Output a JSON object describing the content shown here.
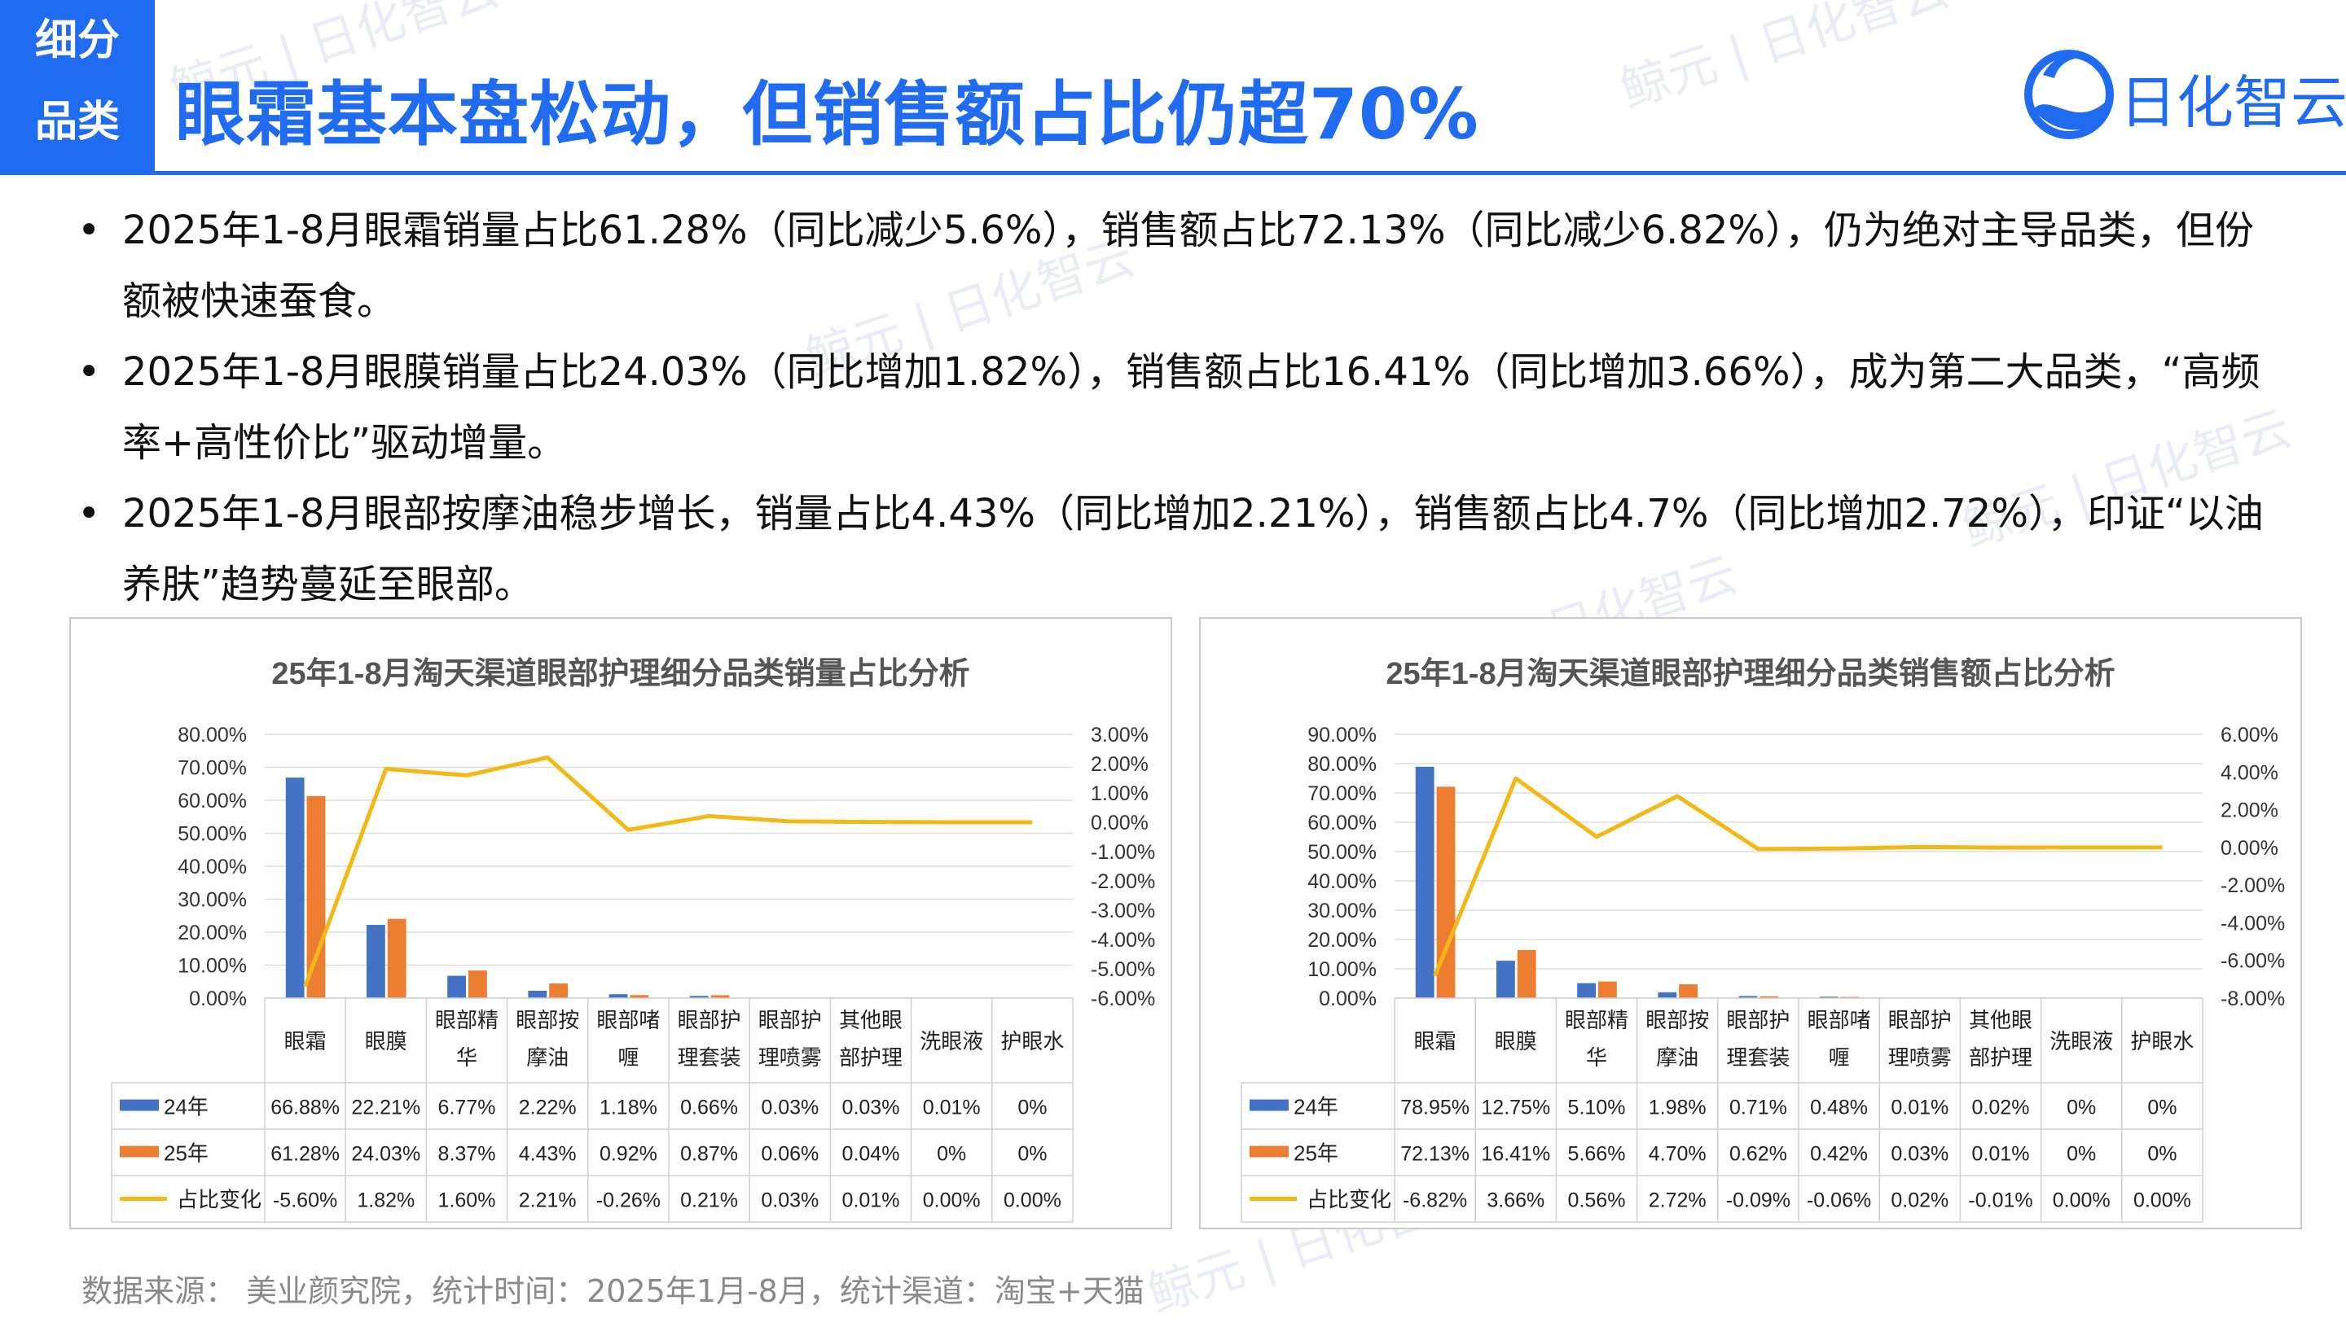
{
  "header": {
    "tag_line1": "细分",
    "tag_line2": "品类",
    "title": "眼霜基本盘松动，但销售额占比仍超70%",
    "logo_text": "日化智云",
    "brand_color": "#1f6bf2"
  },
  "bullets": [
    "2025年1-8月眼霜销量占比61.28%（同比减少5.6%），销售额占比72.13%（同比减少6.82%），仍为绝对主导品类，但份额被快速蚕食。",
    "2025年1-8月眼膜销量占比24.03%（同比增加1.82%），销售额占比16.41%（同比增加3.66%），成为第二大品类，“高频率+高性价比”驱动增量。",
    "2025年1-8月眼部按摩油稳步增长，销量占比4.43%（同比增加2.21%），销售额占比4.7%（同比增加2.72%），印证“以油养肤”趋势蔓延至眼部。"
  ],
  "source": "数据来源： 美业颜究院，统计时间：2025年1月-8月，统计渠道：淘宝+天猫",
  "watermark": "鲸元 | 日化智云",
  "chart_data": [
    {
      "type": "bar",
      "title": "25年1-8月淘天渠道眼部护理细分品类销量占比分析",
      "categories": [
        "眼霜",
        "眼膜",
        "眼部精华",
        "眼部按摩油",
        "眼部啫喱",
        "眼部护理套装",
        "眼部护理喷雾",
        "其他眼部护理",
        "洗眼液",
        "护眼水"
      ],
      "category_lines": [
        [
          "眼霜"
        ],
        [
          "眼膜"
        ],
        [
          "眼部精",
          "华"
        ],
        [
          "眼部按",
          "摩油"
        ],
        [
          "眼部啫",
          "喱"
        ],
        [
          "眼部护",
          "理套装"
        ],
        [
          "眼部护",
          "理喷雾"
        ],
        [
          "其他眼",
          "部护理"
        ],
        [
          "洗眼液"
        ],
        [
          "护眼水"
        ]
      ],
      "y_ticks": [
        "80.00%",
        "70.00%",
        "60.00%",
        "50.00%",
        "40.00%",
        "30.00%",
        "20.00%",
        "10.00%",
        "0.00%"
      ],
      "y2_ticks": [
        "3.00%",
        "2.00%",
        "1.00%",
        "0.00%",
        "-1.00%",
        "-2.00%",
        "-3.00%",
        "-4.00%",
        "-5.00%",
        "-6.00%"
      ],
      "ylim": [
        0,
        80
      ],
      "y2lim": [
        -6,
        3
      ],
      "series": [
        {
          "name": "24年",
          "kind": "bar",
          "axis": "left",
          "color": "#4472c4",
          "values": [
            66.88,
            22.21,
            6.77,
            2.22,
            1.18,
            0.66,
            0.03,
            0.03,
            0.01,
            0
          ],
          "labels": [
            "66.88%",
            "22.21%",
            "6.77%",
            "2.22%",
            "1.18%",
            "0.66%",
            "0.03%",
            "0.03%",
            "0.01%",
            "0%"
          ]
        },
        {
          "name": "25年",
          "kind": "bar",
          "axis": "left",
          "color": "#ed7d31",
          "values": [
            61.28,
            24.03,
            8.37,
            4.43,
            0.92,
            0.87,
            0.06,
            0.04,
            0,
            0
          ],
          "labels": [
            "61.28%",
            "24.03%",
            "8.37%",
            "4.43%",
            "0.92%",
            "0.87%",
            "0.06%",
            "0.04%",
            "0%",
            "0%"
          ]
        },
        {
          "name": "占比变化",
          "kind": "line",
          "axis": "right",
          "color": "#f2b814",
          "values": [
            -5.6,
            1.82,
            1.6,
            2.21,
            -0.26,
            0.21,
            0.03,
            0.01,
            0.0,
            0.0
          ],
          "labels": [
            "-5.60%",
            "1.82%",
            "1.60%",
            "2.21%",
            "-0.26%",
            "0.21%",
            "0.03%",
            "0.01%",
            "0.00%",
            "0.00%"
          ]
        }
      ],
      "grid": true,
      "legend": "table-below"
    },
    {
      "type": "bar",
      "title": "25年1-8月淘天渠道眼部护理细分品类销售额占比分析",
      "categories": [
        "眼霜",
        "眼膜",
        "眼部精华",
        "眼部按摩油",
        "眼部护理套装",
        "眼部啫喱",
        "眼部护理喷雾",
        "其他眼部护理",
        "洗眼液",
        "护眼水"
      ],
      "category_lines": [
        [
          "眼霜"
        ],
        [
          "眼膜"
        ],
        [
          "眼部精",
          "华"
        ],
        [
          "眼部按",
          "摩油"
        ],
        [
          "眼部护",
          "理套装"
        ],
        [
          "眼部啫",
          "喱"
        ],
        [
          "眼部护",
          "理喷雾"
        ],
        [
          "其他眼",
          "部护理"
        ],
        [
          "洗眼液"
        ],
        [
          "护眼水"
        ]
      ],
      "y_ticks": [
        "90.00%",
        "80.00%",
        "70.00%",
        "60.00%",
        "50.00%",
        "40.00%",
        "30.00%",
        "20.00%",
        "10.00%",
        "0.00%"
      ],
      "y2_ticks": [
        "6.00%",
        "4.00%",
        "2.00%",
        "0.00%",
        "-2.00%",
        "-4.00%",
        "-6.00%",
        "-8.00%"
      ],
      "ylim": [
        0,
        90
      ],
      "y2lim": [
        -8,
        6
      ],
      "series": [
        {
          "name": "24年",
          "kind": "bar",
          "axis": "left",
          "color": "#4472c4",
          "values": [
            78.95,
            12.75,
            5.1,
            1.98,
            0.71,
            0.48,
            0.01,
            0.02,
            0,
            0
          ],
          "labels": [
            "78.95%",
            "12.75%",
            "5.10%",
            "1.98%",
            "0.71%",
            "0.48%",
            "0.01%",
            "0.02%",
            "0%",
            "0%"
          ]
        },
        {
          "name": "25年",
          "kind": "bar",
          "axis": "left",
          "color": "#ed7d31",
          "values": [
            72.13,
            16.41,
            5.66,
            4.7,
            0.62,
            0.42,
            0.03,
            0.01,
            0,
            0
          ],
          "labels": [
            "72.13%",
            "16.41%",
            "5.66%",
            "4.70%",
            "0.62%",
            "0.42%",
            "0.03%",
            "0.01%",
            "0%",
            "0%"
          ]
        },
        {
          "name": "占比变化",
          "kind": "line",
          "axis": "right",
          "color": "#f2b814",
          "values": [
            -6.82,
            3.66,
            0.56,
            2.72,
            -0.09,
            -0.06,
            0.02,
            -0.01,
            0.0,
            0.0
          ],
          "labels": [
            "-6.82%",
            "3.66%",
            "0.56%",
            "2.72%",
            "-0.09%",
            "-0.06%",
            "0.02%",
            "-0.01%",
            "0.00%",
            "0.00%"
          ]
        }
      ],
      "grid": true,
      "legend": "table-below"
    }
  ]
}
